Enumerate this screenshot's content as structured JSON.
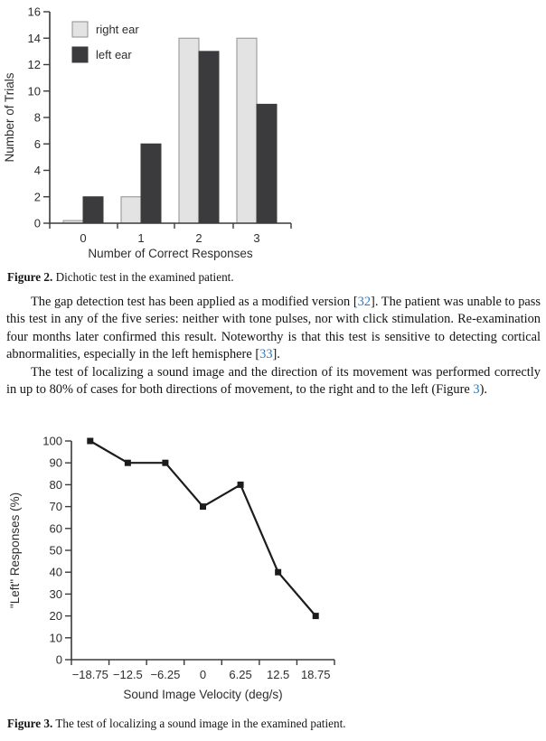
{
  "figure2": {
    "caption_label": "Figure 2.",
    "caption_text": " Dichotic test in the examined patient."
  },
  "figure3": {
    "caption_label": "Figure 3.",
    "caption_text": " The test of localizing a sound image in the examined patient."
  },
  "body": {
    "p1": {
      "r1": "The gap detection test has been applied as a modified version [",
      "c1": "32",
      "r2": "]. The patient was unable to pass this test in any of the five series: neither with tone pulses, nor with click stimulation. Re-examination four months later confirmed this result. Noteworthy is that this test is sensitive to detecting cortical abnormalities, especially in the left hemisphere [",
      "c2": "33",
      "r3": "]."
    },
    "p2": {
      "r1": "The test of localizing a sound image and the direction of its movement was performed correctly in up to 80% of cases for both directions of movement, to the right and to the left (Figure ",
      "c1": "3",
      "r2": ")."
    }
  },
  "colors": {
    "cite_blue": "#3178b5",
    "axis": "#3a3a3a",
    "right_ear_fill": "#e3e3e3",
    "right_ear_border": "#8f8f8f",
    "left_ear_fill": "#3b3b3d",
    "line_black": "#1c1c1c"
  },
  "chart_data": [
    {
      "id": "dichotic-bar-chart",
      "type": "bar",
      "title": "",
      "categories": [
        "0",
        "1",
        "2",
        "3"
      ],
      "series": [
        {
          "name": "right ear",
          "color": "#e3e3e3",
          "border": "#8f8f8f",
          "values": [
            0.2,
            2,
            14,
            14
          ]
        },
        {
          "name": "left ear",
          "color": "#3b3b3d",
          "border": "#3b3b3d",
          "values": [
            2,
            6,
            13,
            9
          ]
        }
      ],
      "xlabel": "Number of Correct Responses",
      "ylabel": "Number of Trials",
      "ylim": [
        0,
        16
      ],
      "yticks": [
        0,
        2,
        4,
        6,
        8,
        10,
        12,
        14,
        16
      ],
      "legend_position": "top-left",
      "grid": false
    },
    {
      "id": "localization-line-chart",
      "type": "line",
      "title": "",
      "x": [
        -18.75,
        -12.5,
        -6.25,
        0,
        6.25,
        12.5,
        18.75
      ],
      "x_labels": [
        "−18.75",
        "−12.5",
        "−6.25",
        "0",
        "6.25",
        "12.5",
        "18.75"
      ],
      "values": [
        100,
        90,
        90,
        70,
        80,
        40,
        20
      ],
      "xlabel": "Sound Image Velocity (deg/s)",
      "ylabel": "\"Left\" Responses (%)",
      "ylim": [
        0,
        100
      ],
      "yticks": [
        0,
        10,
        20,
        30,
        40,
        50,
        60,
        70,
        80,
        90,
        100
      ],
      "marker": "square",
      "line_color": "#1c1c1c",
      "legend_position": "none",
      "grid": false
    }
  ]
}
